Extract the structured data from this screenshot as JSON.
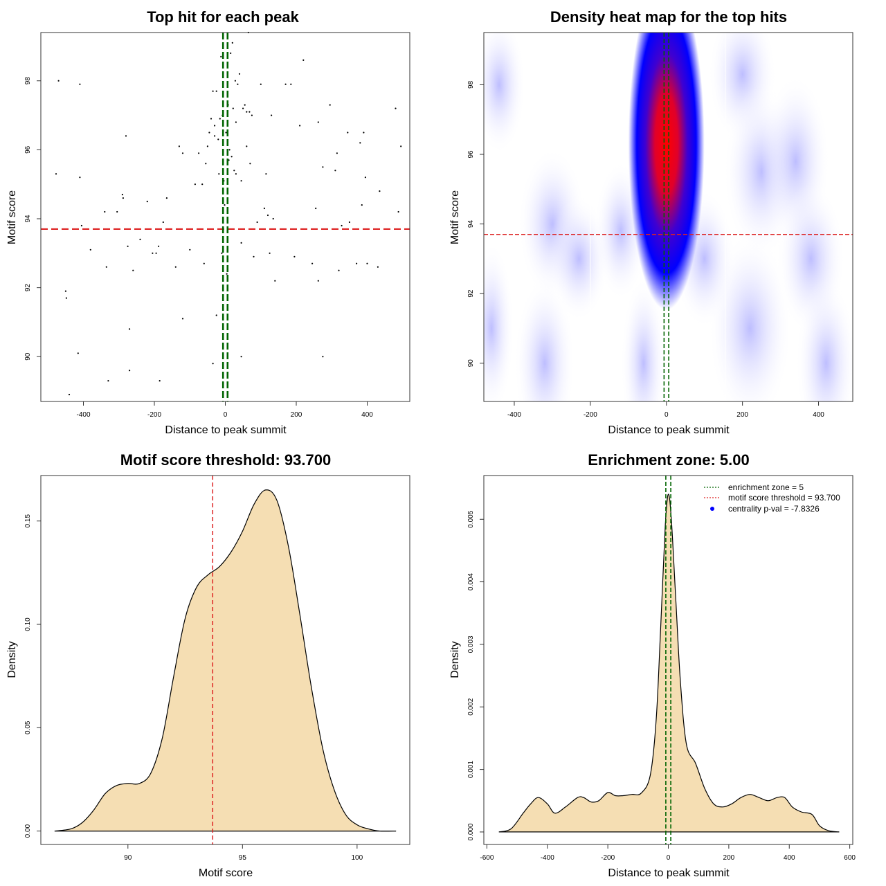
{
  "panels": {
    "scatter": {
      "title": "Top hit for each peak",
      "xlabel": "Distance to peak summit",
      "ylabel": "Motif score"
    },
    "heatmap": {
      "title": "Density heat map for the top hits",
      "xlabel": "Distance to peak summit",
      "ylabel": "Motif score"
    },
    "score_density": {
      "title": "Motif score threshold: 93.700",
      "xlabel": "Motif score",
      "ylabel": "Density"
    },
    "dist_density": {
      "title": "Enrichment zone: 5.00",
      "xlabel": "Distance to peak summit",
      "ylabel": "Density"
    }
  },
  "legend": {
    "enrichment": "enrichment zone = 5",
    "threshold": "motif score threshold = 93.700",
    "pval": "centrality p-val = -7.8326"
  },
  "colors": {
    "threshold_line": "#dd2222",
    "zone_line": "#006400",
    "fill": "#f5deb3",
    "heat_low": "#ffffff",
    "heat_mid": "#0000ff",
    "heat_high": "#ff0000"
  },
  "chart_data": [
    {
      "type": "scatter",
      "title": "Top hit for each peak",
      "xlabel": "Distance to peak summit",
      "ylabel": "Motif score",
      "xlim": [
        -520,
        520
      ],
      "ylim": [
        88.7,
        99.4
      ],
      "xticks": [
        -400,
        -200,
        0,
        200,
        400
      ],
      "yticks": [
        90,
        92,
        94,
        96,
        98
      ],
      "threshold": 93.7,
      "zone": [
        -2.5,
        2.5
      ],
      "points": [
        [
          -470,
          98.0
        ],
        [
          -410,
          97.9
        ],
        [
          -477,
          95.3
        ],
        [
          -410,
          95.2
        ],
        [
          -405,
          93.8
        ],
        [
          -380,
          93.1
        ],
        [
          -340,
          94.2
        ],
        [
          -335,
          92.6
        ],
        [
          -305,
          94.2
        ],
        [
          -290,
          94.7
        ],
        [
          -288,
          94.6
        ],
        [
          -275,
          93.2
        ],
        [
          -260,
          92.5
        ],
        [
          -240,
          93.4
        ],
        [
          -220,
          94.5
        ],
        [
          -205,
          93.0
        ],
        [
          -195,
          93.0
        ],
        [
          -188,
          93.2
        ],
        [
          -175,
          93.9
        ],
        [
          -165,
          94.6
        ],
        [
          -140,
          92.6
        ],
        [
          -130,
          96.1
        ],
        [
          -120,
          95.9
        ],
        [
          -100,
          93.1
        ],
        [
          -85,
          95.0
        ],
        [
          -75,
          95.9
        ],
        [
          -65,
          95.0
        ],
        [
          -60,
          92.7
        ],
        [
          -55,
          95.6
        ],
        [
          -45,
          96.5
        ],
        [
          -40,
          96.9
        ],
        [
          -35,
          97.7
        ],
        [
          -30,
          96.7
        ],
        [
          -25,
          97.7
        ],
        [
          -20,
          96.3
        ],
        [
          -15,
          96.9
        ],
        [
          -12,
          98.7
        ],
        [
          -10,
          93.0
        ],
        [
          -8,
          97.0
        ],
        [
          -6,
          98.2
        ],
        [
          -4,
          95.1
        ],
        [
          -2,
          94.4
        ],
        [
          2,
          96.5
        ],
        [
          4,
          92.4
        ],
        [
          6,
          95.6
        ],
        [
          8,
          97.3
        ],
        [
          10,
          95.7
        ],
        [
          12,
          96.0
        ],
        [
          15,
          98.8
        ],
        [
          18,
          95.8
        ],
        [
          20,
          99.1
        ],
        [
          22,
          97.2
        ],
        [
          25,
          95.4
        ],
        [
          28,
          98.0
        ],
        [
          30,
          95.3
        ],
        [
          35,
          97.9
        ],
        [
          40,
          98.2
        ],
        [
          45,
          93.3
        ],
        [
          50,
          97.2
        ],
        [
          55,
          97.3
        ],
        [
          60,
          97.1
        ],
        [
          65,
          99.4
        ],
        [
          68,
          97.1
        ],
        [
          70,
          95.6
        ],
        [
          75,
          97.0
        ],
        [
          80,
          92.9
        ],
        [
          90,
          93.9
        ],
        [
          100,
          97.9
        ],
        [
          110,
          94.3
        ],
        [
          115,
          95.3
        ],
        [
          120,
          94.1
        ],
        [
          125,
          93.0
        ],
        [
          130,
          97.0
        ],
        [
          135,
          94.0
        ],
        [
          140,
          92.2
        ],
        [
          170,
          97.9
        ],
        [
          185,
          97.9
        ],
        [
          195,
          92.9
        ],
        [
          210,
          96.7
        ],
        [
          220,
          98.6
        ],
        [
          245,
          92.7
        ],
        [
          255,
          94.3
        ],
        [
          262,
          96.8
        ],
        [
          262,
          92.2
        ],
        [
          275,
          95.5
        ],
        [
          295,
          97.3
        ],
        [
          310,
          95.4
        ],
        [
          315,
          95.9
        ],
        [
          320,
          92.5
        ],
        [
          328,
          93.8
        ],
        [
          345,
          96.5
        ],
        [
          350,
          93.9
        ],
        [
          370,
          92.7
        ],
        [
          380,
          96.2
        ],
        [
          385,
          94.4
        ],
        [
          390,
          96.5
        ],
        [
          395,
          95.2
        ],
        [
          400,
          92.7
        ],
        [
          430,
          92.6
        ],
        [
          435,
          94.8
        ],
        [
          480,
          97.2
        ],
        [
          488,
          94.2
        ],
        [
          495,
          96.1
        ],
        [
          -450,
          91.9
        ],
        [
          -448,
          91.7
        ],
        [
          -270,
          90.8
        ],
        [
          -120,
          91.1
        ],
        [
          -25,
          91.2
        ],
        [
          -415,
          90.1
        ],
        [
          -270,
          89.6
        ],
        [
          -35,
          89.8
        ],
        [
          45,
          90.0
        ],
        [
          275,
          90.0
        ],
        [
          -330,
          89.3
        ],
        [
          -185,
          89.3
        ],
        [
          -440,
          88.9
        ],
        [
          -280,
          96.4
        ],
        [
          -50,
          96.1
        ],
        [
          -30,
          96.4
        ],
        [
          -18,
          95.3
        ],
        [
          30,
          96.8
        ],
        [
          45,
          95.1
        ],
        [
          60,
          96.1
        ]
      ]
    },
    {
      "type": "heatmap",
      "title": "Density heat map for the top hits",
      "xlabel": "Distance to peak summit",
      "ylabel": "Motif score",
      "xlim": [
        -480,
        490
      ],
      "ylim": [
        88.9,
        99.5
      ],
      "xticks": [
        -400,
        -200,
        0,
        200,
        400
      ],
      "yticks": [
        90,
        92,
        94,
        96,
        98
      ],
      "threshold": 93.7,
      "zone": [
        -2.5,
        2.5
      ],
      "hotspot": {
        "x": 0,
        "y": 96.3
      }
    },
    {
      "type": "area",
      "title": "Motif score threshold: 93.700",
      "xlabel": "Motif score",
      "ylabel": "Density",
      "xlim": [
        86.2,
        102.3
      ],
      "ylim": [
        -0.0065,
        0.172
      ],
      "xticks": [
        90,
        95,
        100
      ],
      "yticks": [
        0.0,
        0.05,
        0.1,
        0.15
      ],
      "ytick_labels": [
        "0.00",
        "0.05",
        "0.10",
        "0.15"
      ],
      "threshold": 93.7,
      "x": [
        86.8,
        87.5,
        88.0,
        88.5,
        89.0,
        89.5,
        90.0,
        90.5,
        91.0,
        91.5,
        92.0,
        92.5,
        93.0,
        93.5,
        94.0,
        94.5,
        95.0,
        95.5,
        96.0,
        96.5,
        97.0,
        97.5,
        98.0,
        98.5,
        99.0,
        99.5,
        100.0,
        100.5,
        101.0,
        101.7
      ],
      "y": [
        0.0,
        0.001,
        0.004,
        0.01,
        0.018,
        0.022,
        0.023,
        0.023,
        0.028,
        0.045,
        0.075,
        0.103,
        0.118,
        0.124,
        0.128,
        0.135,
        0.145,
        0.158,
        0.165,
        0.16,
        0.138,
        0.105,
        0.07,
        0.04,
        0.02,
        0.008,
        0.003,
        0.001,
        0.0,
        0.0
      ]
    },
    {
      "type": "area",
      "title": "Enrichment zone: 5.00",
      "xlabel": "Distance to peak summit",
      "ylabel": "Density",
      "xlim": [
        -610,
        610
      ],
      "ylim": [
        -0.0002,
        0.0057
      ],
      "xticks": [
        -600,
        -400,
        -200,
        0,
        200,
        400,
        600
      ],
      "yticks": [
        0.0,
        0.001,
        0.002,
        0.003,
        0.004,
        0.005
      ],
      "ytick_labels": [
        "0.000",
        "0.001",
        "0.002",
        "0.003",
        "0.004",
        "0.005"
      ],
      "zone": [
        -2.5,
        2.5
      ],
      "x": [
        -560,
        -520,
        -480,
        -455,
        -430,
        -400,
        -375,
        -340,
        -300,
        -280,
        -255,
        -230,
        -200,
        -175,
        -150,
        -120,
        -90,
        -60,
        -40,
        -25,
        -10,
        0,
        10,
        25,
        40,
        60,
        90,
        120,
        150,
        180,
        210,
        240,
        270,
        300,
        330,
        360,
        385,
        410,
        440,
        475,
        500,
        530,
        565
      ],
      "y": [
        0.0,
        5e-05,
        0.0003,
        0.00045,
        0.00055,
        0.00045,
        0.0003,
        0.0004,
        0.00055,
        0.00055,
        0.00048,
        0.0005,
        0.00063,
        0.00058,
        0.00058,
        0.0006,
        0.00062,
        0.0009,
        0.0018,
        0.0033,
        0.0049,
        0.0054,
        0.005,
        0.0037,
        0.0024,
        0.0014,
        0.0011,
        0.0007,
        0.00045,
        0.0004,
        0.00045,
        0.00055,
        0.0006,
        0.00055,
        0.0005,
        0.00055,
        0.00055,
        0.0004,
        0.00032,
        0.00028,
        0.0001,
        2e-05,
        0.0
      ]
    }
  ]
}
